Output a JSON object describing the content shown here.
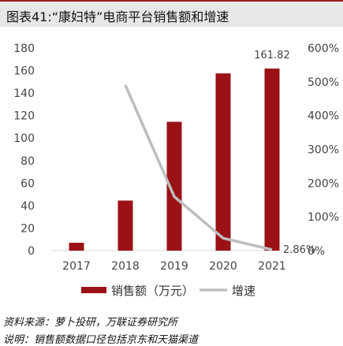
{
  "title": "图表41:“康妇特”电商平台销售额和增速",
  "source": "资料来源：萝卜投研，万联证券研究所",
  "note": "说明：销售额数据口径包括京东和天猫渠道",
  "colors": {
    "bar": "#9b1216",
    "line": "#bdbdbd",
    "title_bg": "#e7e7e7"
  },
  "chart_data": {
    "type": "bar",
    "categories": [
      "2017",
      "2018",
      "2019",
      "2020",
      "2021"
    ],
    "series": [
      {
        "name": "销售额（万元）",
        "type": "bar",
        "axis": "left",
        "values": [
          7,
          44.5,
          114.5,
          157.5,
          161.82
        ]
      },
      {
        "name": "增速",
        "type": "line",
        "axis": "right",
        "values": [
          null,
          4.9,
          1.6,
          0.37,
          0.0286
        ]
      }
    ],
    "data_labels": [
      {
        "series": 0,
        "index": 4,
        "text": "161.82"
      },
      {
        "series": 1,
        "index": 4,
        "text": "2.86%"
      }
    ],
    "left_axis": {
      "range": [
        0,
        180
      ],
      "ticks": [
        "0",
        "20",
        "40",
        "60",
        "80",
        "100",
        "120",
        "140",
        "160",
        "180"
      ]
    },
    "right_axis": {
      "range": [
        0,
        6
      ],
      "ticks": [
        "0%",
        "100%",
        "200%",
        "300%",
        "400%",
        "500%",
        "600%"
      ]
    },
    "grid": false,
    "legend_position": "bottom"
  }
}
